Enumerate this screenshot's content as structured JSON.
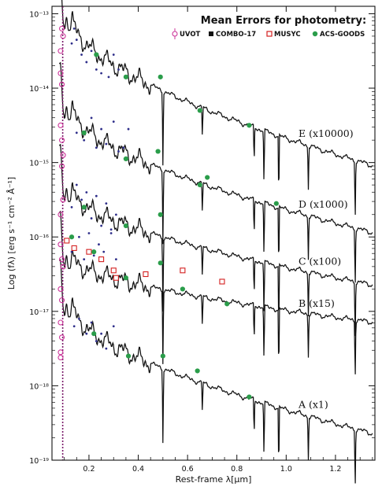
{
  "chart_data": {
    "type": "line",
    "title": "Mean Errors for photometry:",
    "xlabel": "Rest-frame λ[μm]",
    "ylabel": "Log (fλ) [erg s⁻¹ cm⁻² Å⁻¹]",
    "xlim": [
      0.05,
      1.36
    ],
    "ylim": [
      -19,
      -12.9
    ],
    "yscale": "log",
    "grid": false,
    "legend_position": "top-right",
    "x_ticks": [
      0.2,
      0.4,
      0.6,
      0.8,
      1.0,
      1.2
    ],
    "x_tick_labels": [
      "0.2",
      "0.4",
      "0.6",
      "0.8",
      "1.0",
      "1.2"
    ],
    "y_ticks": [
      -19,
      -18,
      -17,
      -16,
      -15,
      -14,
      -13
    ],
    "y_tick_labels": [
      "10⁻¹⁹",
      "10⁻¹⁸",
      "10⁻¹⁷",
      "10⁻¹⁶",
      "10⁻¹⁵",
      "10⁻¹⁴",
      "10⁻¹³"
    ],
    "lyman_alpha_line_x": 0.0935,
    "legend": [
      {
        "name": "UVOT",
        "marker": "open-circle-errorbar",
        "color": "#cc3399"
      },
      {
        "name": "COMBO-17",
        "marker": "filled-square",
        "color": "#111111"
      },
      {
        "name": "MUSYC",
        "marker": "open-square",
        "color": "#d42020"
      },
      {
        "name": "ACS-GOODS",
        "marker": "filled-circle",
        "color": "#2a9d4a"
      }
    ],
    "spectra": [
      {
        "label": "E (x10000)",
        "anchor_log_flux": -13.1,
        "end_log_flux": -15.05
      },
      {
        "label": "D (x1000)",
        "anchor_log_flux": -14.3,
        "end_log_flux": -15.95
      },
      {
        "label": "C (x100)",
        "anchor_log_flux": -15.4,
        "end_log_flux": -16.65
      },
      {
        "label": "B (x15)",
        "anchor_log_flux": -16.3,
        "end_log_flux": -17.15
      },
      {
        "label": "A (x1)",
        "anchor_log_flux": -16.95,
        "end_log_flux": -18.65
      }
    ],
    "series": [
      {
        "name": "UVOT",
        "points": [
          [
            0.085,
            -13.5
          ],
          [
            0.085,
            -13.8
          ],
          [
            0.09,
            -13.2
          ],
          [
            0.09,
            -13.95
          ],
          [
            0.095,
            -13.3
          ],
          [
            0.085,
            -14.5
          ],
          [
            0.09,
            -14.7
          ],
          [
            0.095,
            -14.9
          ],
          [
            0.09,
            -15.05
          ],
          [
            0.085,
            -15.7
          ],
          [
            0.095,
            -15.5
          ],
          [
            0.085,
            -16.1
          ],
          [
            0.09,
            -16.3
          ],
          [
            0.095,
            -16.4
          ],
          [
            0.085,
            -16.7
          ],
          [
            0.09,
            -16.85
          ],
          [
            0.085,
            -17.15
          ],
          [
            0.09,
            -17.35
          ],
          [
            0.085,
            -17.55
          ],
          [
            0.085,
            -17.62
          ]
        ]
      },
      {
        "name": "COMBO-17",
        "points": [
          [
            0.13,
            -13.4
          ],
          [
            0.14,
            -13.2
          ],
          [
            0.15,
            -13.35
          ],
          [
            0.17,
            -13.55
          ],
          [
            0.19,
            -13.65
          ],
          [
            0.21,
            -13.5
          ],
          [
            0.23,
            -13.75
          ],
          [
            0.25,
            -13.8
          ],
          [
            0.28,
            -13.85
          ],
          [
            0.3,
            -13.55
          ],
          [
            0.32,
            -13.75
          ],
          [
            0.15,
            -14.6
          ],
          [
            0.18,
            -14.7
          ],
          [
            0.21,
            -14.4
          ],
          [
            0.23,
            -14.8
          ],
          [
            0.25,
            -14.55
          ],
          [
            0.27,
            -14.75
          ],
          [
            0.3,
            -14.45
          ],
          [
            0.32,
            -14.85
          ],
          [
            0.34,
            -14.8
          ],
          [
            0.36,
            -14.55
          ],
          [
            0.13,
            -15.6
          ],
          [
            0.15,
            -15.3
          ],
          [
            0.17,
            -15.5
          ],
          [
            0.19,
            -15.4
          ],
          [
            0.21,
            -15.75
          ],
          [
            0.23,
            -15.45
          ],
          [
            0.25,
            -15.85
          ],
          [
            0.27,
            -15.55
          ],
          [
            0.29,
            -15.95
          ],
          [
            0.31,
            -15.7
          ],
          [
            0.13,
            -16.2
          ],
          [
            0.16,
            -16.0
          ],
          [
            0.18,
            -16.3
          ],
          [
            0.2,
            -15.95
          ],
          [
            0.22,
            -16.25
          ],
          [
            0.24,
            -16.1
          ],
          [
            0.26,
            -16.2
          ],
          [
            0.29,
            -15.9
          ],
          [
            0.31,
            -16.3
          ],
          [
            0.14,
            -17.2
          ],
          [
            0.16,
            -17.1
          ],
          [
            0.19,
            -17.3
          ],
          [
            0.21,
            -17.15
          ],
          [
            0.23,
            -17.4
          ],
          [
            0.25,
            -17.3
          ],
          [
            0.27,
            -17.5
          ],
          [
            0.3,
            -17.2
          ]
        ]
      },
      {
        "name": "MUSYC",
        "points": [
          [
            0.11,
            -16.05
          ],
          [
            0.14,
            -16.15
          ],
          [
            0.2,
            -16.2
          ],
          [
            0.25,
            -16.3
          ],
          [
            0.3,
            -16.45
          ],
          [
            0.31,
            -16.55
          ],
          [
            0.43,
            -16.5
          ],
          [
            0.58,
            -16.45
          ],
          [
            0.74,
            -16.6
          ]
        ]
      },
      {
        "name": "ACS-GOODS",
        "points": [
          [
            0.23,
            -13.55
          ],
          [
            0.35,
            -13.85
          ],
          [
            0.49,
            -13.85
          ],
          [
            0.65,
            -14.3
          ],
          [
            0.18,
            -14.6
          ],
          [
            0.35,
            -14.95
          ],
          [
            0.48,
            -14.85
          ],
          [
            0.65,
            -15.3
          ],
          [
            0.85,
            -14.5
          ],
          [
            0.18,
            -15.6
          ],
          [
            0.35,
            -15.85
          ],
          [
            0.49,
            -15.7
          ],
          [
            0.68,
            -15.2
          ],
          [
            0.96,
            -15.55
          ],
          [
            0.13,
            -16.0
          ],
          [
            0.22,
            -16.2
          ],
          [
            0.35,
            -16.55
          ],
          [
            0.49,
            -16.35
          ],
          [
            0.58,
            -16.7
          ],
          [
            0.76,
            -16.9
          ],
          [
            0.22,
            -17.3
          ],
          [
            0.36,
            -17.6
          ],
          [
            0.5,
            -17.6
          ],
          [
            0.64,
            -17.8
          ],
          [
            0.85,
            -18.15
          ]
        ]
      }
    ]
  }
}
